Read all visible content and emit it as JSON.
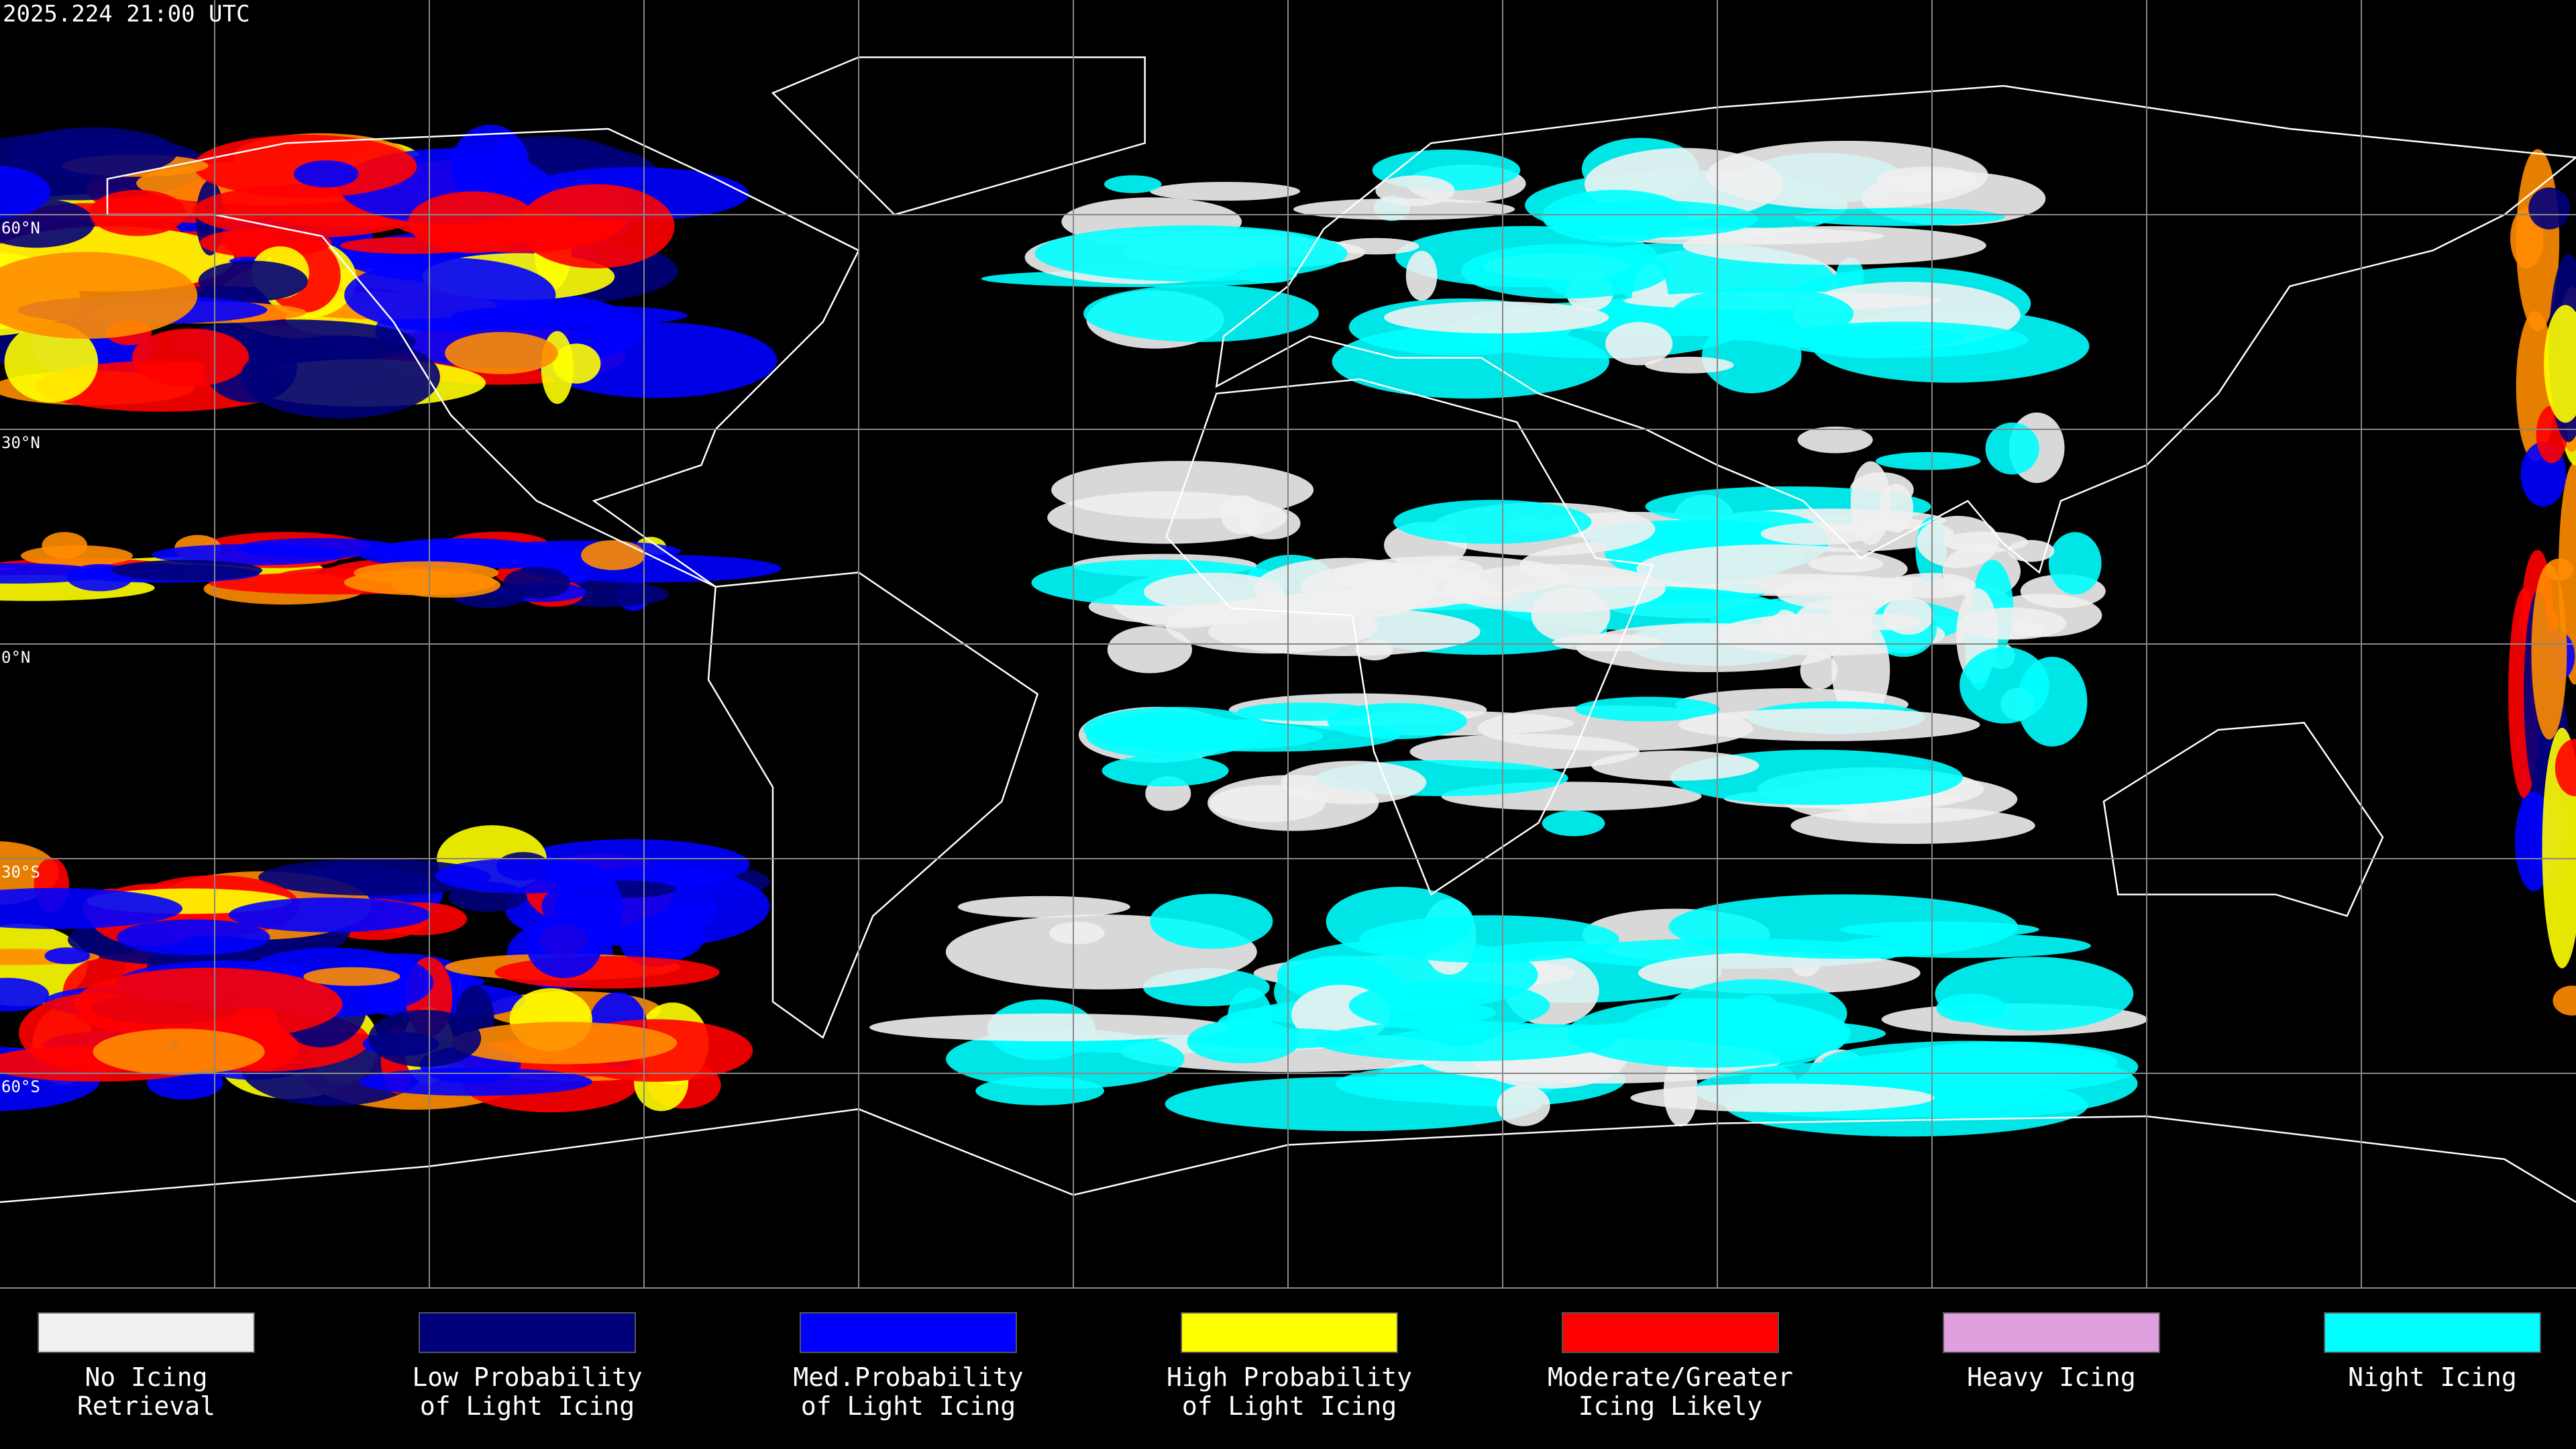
{
  "header": {
    "timestamp": "2025.224 21:00 UTC"
  },
  "map": {
    "latitude_labels": [
      "60°N",
      "30°N",
      "0°N",
      "30°S",
      "60°S"
    ]
  },
  "legend": {
    "items": [
      {
        "lines": [
          "No Icing",
          "Retrieval"
        ],
        "color": "#f0f0f0"
      },
      {
        "lines": [
          "Low Probability",
          "of Light Icing"
        ],
        "color": "#00007a"
      },
      {
        "lines": [
          "Med.Probability",
          "of Light Icing"
        ],
        "color": "#0000ff"
      },
      {
        "lines": [
          "High Probability",
          "of Light Icing"
        ],
        "color": "#ffff00"
      },
      {
        "lines": [
          "Moderate/Greater",
          "Icing Likely"
        ],
        "color": "#ff0000"
      },
      {
        "lines": [
          "Heavy Icing"
        ],
        "color": "#e0a0e0"
      },
      {
        "lines": [
          "Night Icing"
        ],
        "color": "#00ffff"
      }
    ]
  }
}
